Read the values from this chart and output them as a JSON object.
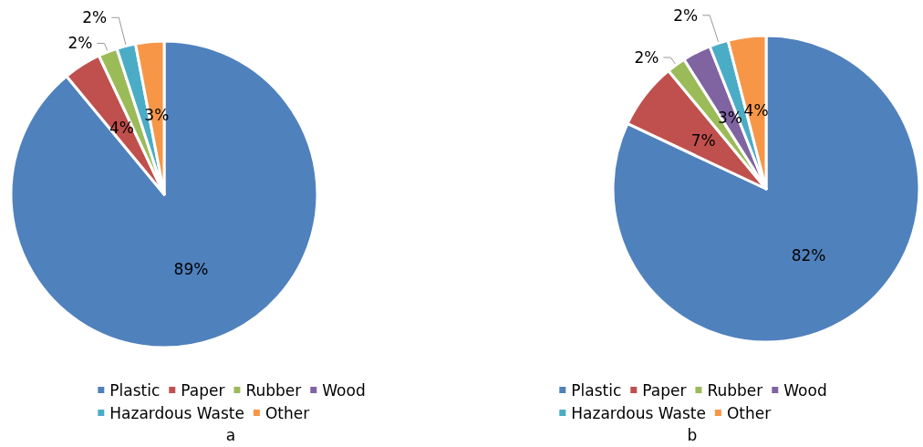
{
  "chart_data": [
    {
      "type": "pie",
      "title": "a",
      "categories": [
        "Plastic",
        "Paper",
        "Rubber",
        "Wood",
        "Hazardous Waste",
        "Other"
      ],
      "values": [
        89,
        4,
        2,
        null,
        2,
        3
      ],
      "value_labels": [
        "89%",
        "4%",
        "2%",
        null,
        "2%",
        "3%"
      ],
      "colors": [
        "#4f81bd",
        "#c0504d",
        "#9bbb59",
        "#8064a2",
        "#4bacc6",
        "#f79646"
      ],
      "legend": "bottom"
    },
    {
      "type": "pie",
      "title": "b",
      "categories": [
        "Plastic",
        "Paper",
        "Rubber",
        "Wood",
        "Hazardous Waste",
        "Other"
      ],
      "values": [
        82,
        7,
        2,
        3,
        2,
        4
      ],
      "value_labels": [
        "82%",
        "7%",
        "2%",
        "3%",
        "2%",
        "4%"
      ],
      "colors": [
        "#4f81bd",
        "#c0504d",
        "#9bbb59",
        "#8064a2",
        "#4bacc6",
        "#f79646"
      ],
      "legend": "bottom"
    }
  ]
}
